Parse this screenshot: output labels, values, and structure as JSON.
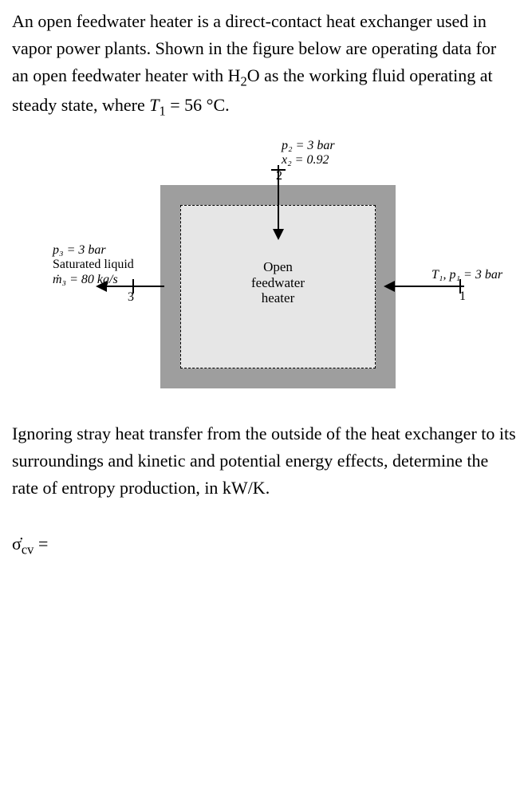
{
  "problem": {
    "para1_pre": "An open feedwater heater is a direct-contact heat exchanger used in vapor power plants. Shown in the figure below are operating data for an open feedwater heater with H",
    "h2o_sub": "2",
    "para1_mid": "O as the working fluid operating at steady state, where ",
    "t1_var": "T",
    "t1_sub": "1",
    "t1_suffix": " = 56 °C."
  },
  "diagram": {
    "inner_label_l1": "Open",
    "inner_label_l2": "feedwater",
    "inner_label_l3": "heater",
    "inlet2": {
      "p": "p₂ = 3 bar",
      "x": "x₂ = 0.92",
      "num": "2"
    },
    "inlet1": {
      "label": "T₁, p₁ = 3 bar",
      "num": "1"
    },
    "outlet3": {
      "p": "p₃ = 3 bar",
      "state": "Saturated liquid",
      "mdot": "ṁ₃ = 80 kg/s",
      "num": "3"
    }
  },
  "bottom": {
    "text": "Ignoring stray heat transfer from the outside of the heat exchanger to its surroundings and kinetic and potential energy effects, determine the rate of entropy production, in kW/K."
  },
  "answer": {
    "sigma": "σ̇",
    "sub": "cv",
    "eq": " ="
  }
}
